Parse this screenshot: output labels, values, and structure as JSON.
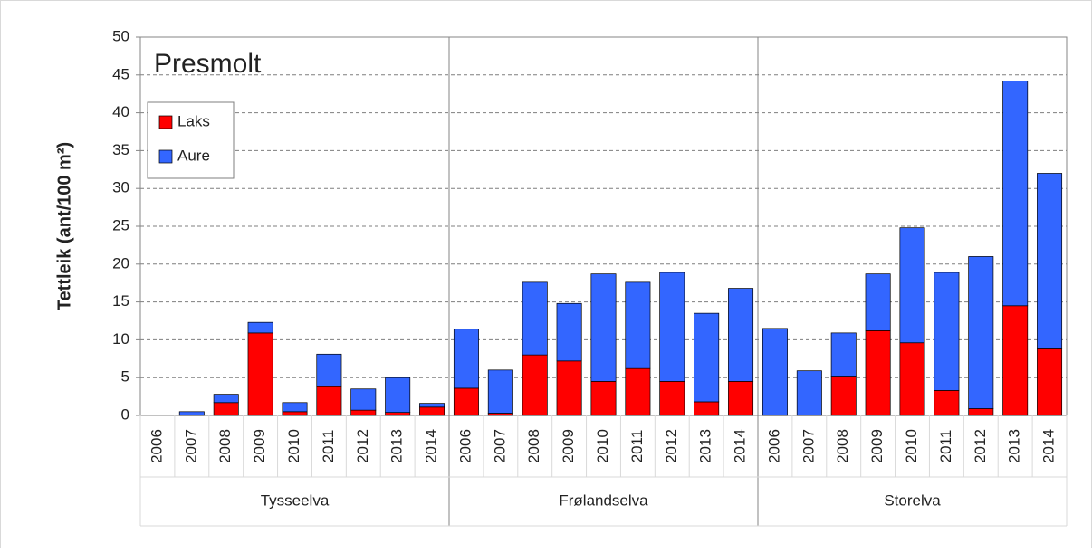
{
  "chart_data": {
    "type": "stacked_bar",
    "annotation": "Presmolt",
    "y_label": "Tettleik (ant/100 m²)",
    "groups": [
      {
        "name": "Tysseelva",
        "categories": [
          "2006",
          "2007",
          "2008",
          "2009",
          "2010",
          "2011",
          "2012",
          "2013",
          "2014"
        ]
      },
      {
        "name": "Frølandselva",
        "categories": [
          "2006",
          "2007",
          "2008",
          "2009",
          "2010",
          "2011",
          "2012",
          "2013",
          "2014"
        ]
      },
      {
        "name": "Storelva",
        "categories": [
          "2006",
          "2007",
          "2008",
          "2009",
          "2010",
          "2011",
          "2012",
          "2013",
          "2014"
        ]
      }
    ],
    "series": [
      {
        "name": "Laks",
        "color": "#ff0000",
        "values": [
          0,
          0,
          1.7,
          10.9,
          0.5,
          3.8,
          0.7,
          0.4,
          1.1,
          3.6,
          0.3,
          8.0,
          7.2,
          4.5,
          6.2,
          4.5,
          1.8,
          4.5,
          0,
          0,
          5.2,
          11.2,
          9.6,
          3.3,
          0.9,
          14.5,
          8.8
        ]
      },
      {
        "name": "Aure",
        "color": "#3366ff",
        "values": [
          0,
          0.5,
          1.1,
          1.4,
          1.2,
          4.3,
          2.8,
          4.6,
          0.5,
          7.8,
          5.7,
          9.6,
          7.6,
          14.2,
          11.4,
          14.4,
          11.7,
          12.3,
          11.5,
          5.9,
          5.7,
          7.5,
          15.2,
          15.6,
          20.1,
          29.7,
          23.2
        ]
      }
    ],
    "ylim": [
      0,
      50
    ],
    "yticks": [
      0,
      5,
      10,
      15,
      20,
      25,
      30,
      35,
      40,
      45,
      50
    ],
    "grid": true,
    "legend": "upper-left"
  }
}
